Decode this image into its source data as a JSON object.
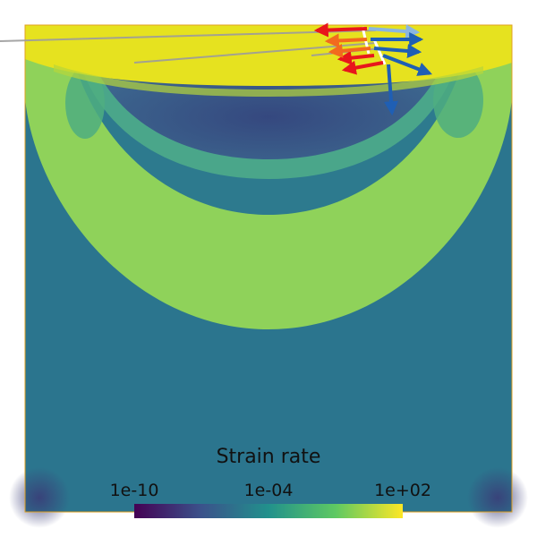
{
  "colorbar": {
    "title": "Strain rate",
    "ticks": [
      "1e-10",
      "1e-04",
      "1e+02"
    ],
    "colormap": [
      "#440154",
      "#3b528b",
      "#21918c",
      "#5ec962",
      "#fde725"
    ]
  },
  "colors": {
    "background_field": "#2b758e",
    "high_strain_band": "#8fd25a",
    "surface_layer": "#e6e21f",
    "low_strain_core": "#3b5c8c",
    "domain_border": "#e0a020",
    "arrows_red": "#e8161c",
    "arrows_orange": "#f26a1e",
    "arrows_blue": "#1f5fb4",
    "arrows_lightblue": "#8ab6e0",
    "trace_lines": "#9c9c9c"
  }
}
